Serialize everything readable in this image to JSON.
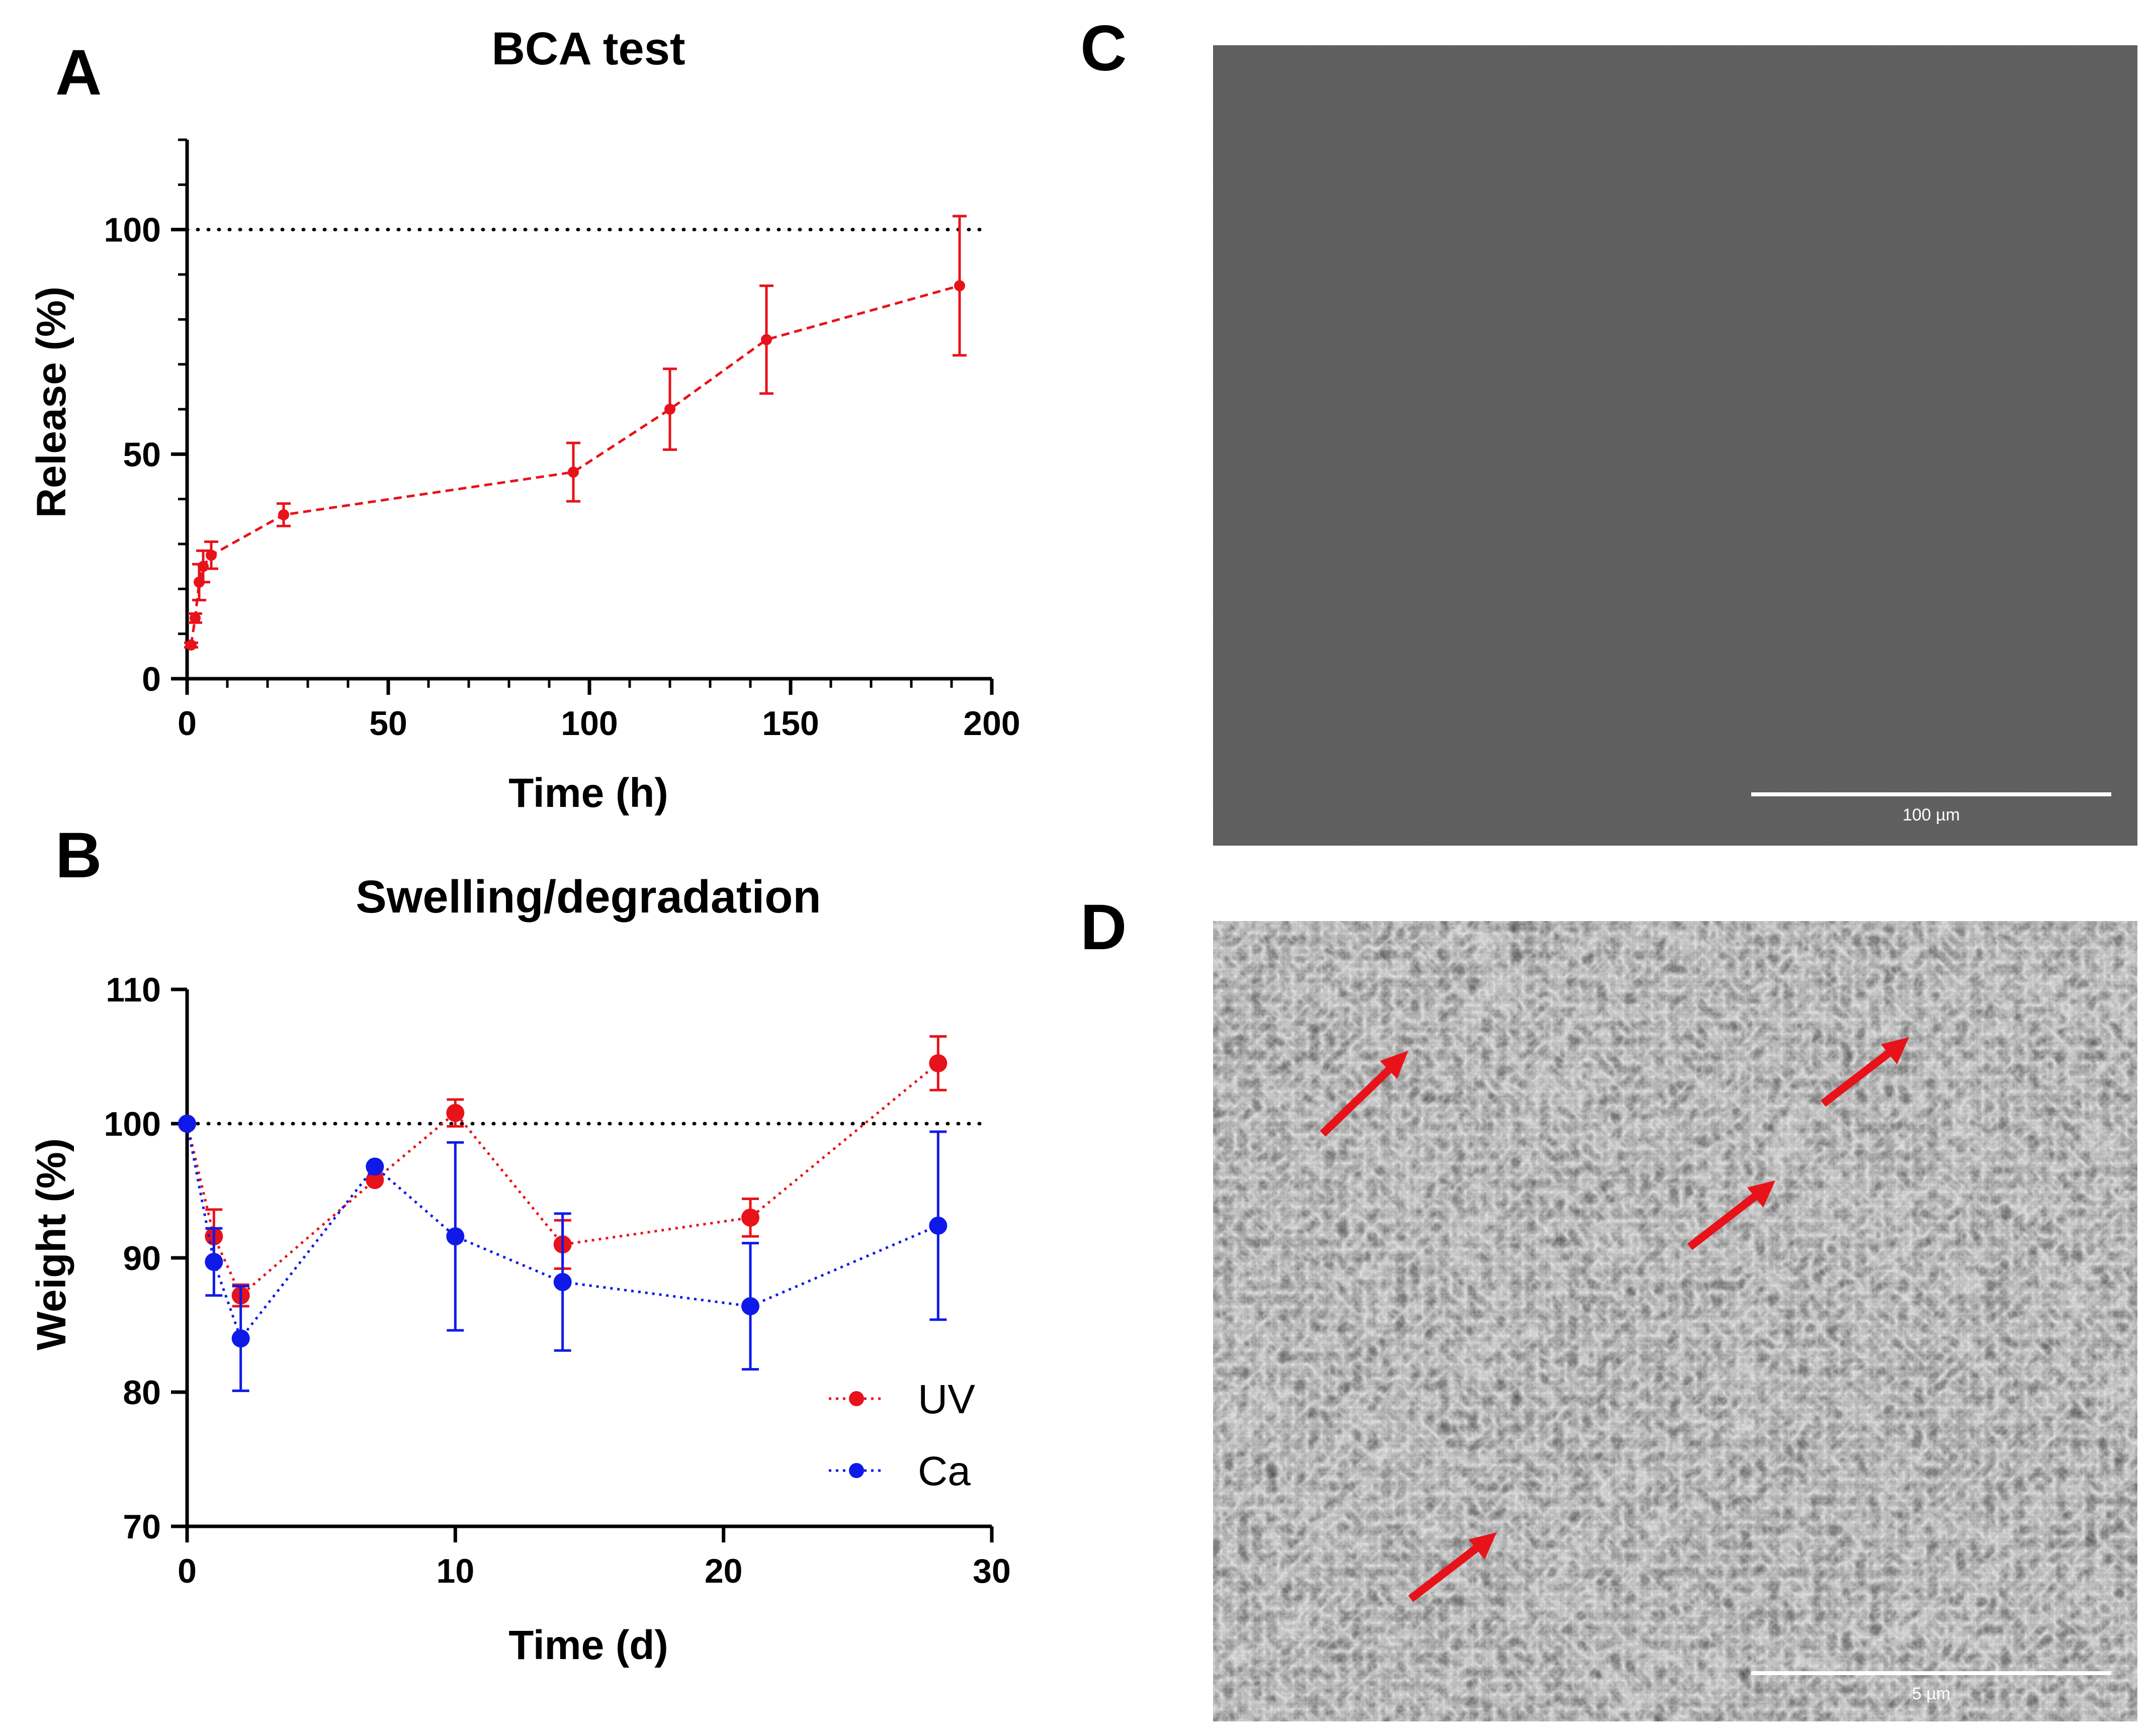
{
  "panels": {
    "a": "A",
    "b": "B",
    "c": "C",
    "d": "D"
  },
  "colors": {
    "uv": "#e8121a",
    "ca": "#0f1ae8",
    "axis": "#000000"
  },
  "chart_data": [
    {
      "id": "A",
      "type": "line",
      "title": "BCA test",
      "xlabel": "Time (h)",
      "ylabel": "Release (%)",
      "xlim": [
        0,
        200
      ],
      "ylim": [
        0,
        120
      ],
      "xticks": [
        0,
        50,
        100,
        150,
        200
      ],
      "yticks": [
        0,
        50,
        100
      ],
      "reference_line": 100,
      "series": [
        {
          "name": "BCA",
          "color": "#e8121a",
          "style": "dashed",
          "x": [
            1,
            2,
            3,
            4,
            6,
            24,
            96,
            120,
            144,
            192
          ],
          "y": [
            7.5,
            13.5,
            21.5,
            25,
            27.5,
            36.5,
            46,
            60,
            75.5,
            87.5
          ],
          "err": [
            0.5,
            1,
            4,
            3.5,
            3,
            2.5,
            6.5,
            9,
            12,
            15.5
          ]
        }
      ]
    },
    {
      "id": "B",
      "type": "line",
      "title": "Swelling/degradation",
      "xlabel": "Time (d)",
      "ylabel": "Weight (%)",
      "xlim": [
        0,
        30
      ],
      "ylim": [
        70,
        110
      ],
      "xticks": [
        0,
        10,
        20,
        30
      ],
      "yticks": [
        70,
        80,
        90,
        100,
        110
      ],
      "reference_line": 100,
      "legend": "bottom-right",
      "series": [
        {
          "name": "UV",
          "color": "#e8121a",
          "style": "dotted",
          "x": [
            0,
            1,
            2,
            7,
            10,
            14,
            21,
            28
          ],
          "y": [
            100,
            91.6,
            87.2,
            95.8,
            100.8,
            91,
            93,
            104.5
          ],
          "err": [
            0,
            2,
            0.8,
            0,
            1,
            1.8,
            1.4,
            2
          ]
        },
        {
          "name": "Ca",
          "color": "#0f1ae8",
          "style": "dotted",
          "x": [
            0,
            1,
            2,
            7,
            10,
            14,
            21,
            28
          ],
          "y": [
            100,
            89.7,
            84,
            96.8,
            91.6,
            88.2,
            86.4,
            92.4
          ],
          "err": [
            0,
            2.5,
            3.9,
            0,
            7,
            5.1,
            4.7,
            7
          ]
        }
      ]
    }
  ],
  "micrographs": {
    "c": {
      "scale_label": "100 µm"
    },
    "d": {
      "scale_label": "5 µm"
    }
  }
}
